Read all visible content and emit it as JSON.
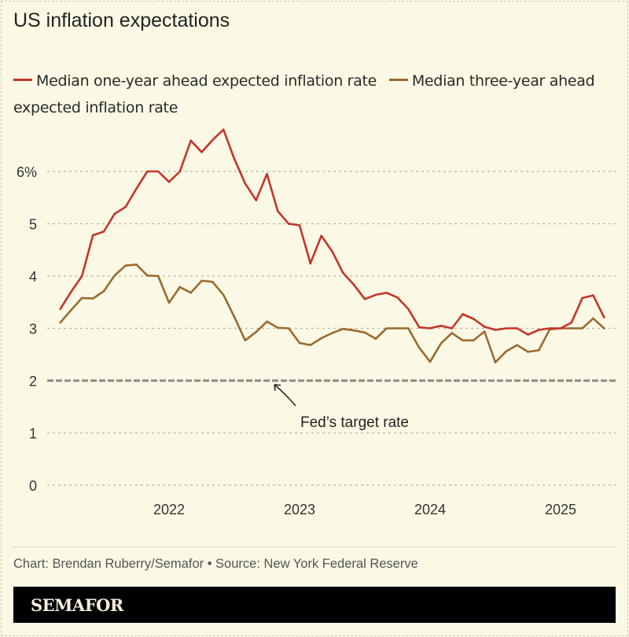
{
  "chart_data": {
    "type": "line",
    "title": "US inflation expectations",
    "xlabel": "",
    "ylabel": "",
    "ylim": [
      0,
      7
    ],
    "yticks": [
      0,
      1,
      2,
      3,
      4,
      5,
      6
    ],
    "ytick_labels": [
      "0",
      "1",
      "2",
      "3",
      "4",
      "5",
      "6%"
    ],
    "xtick_labels": [
      "2022",
      "2023",
      "2024",
      "2025"
    ],
    "grid": true,
    "legend_placement": "top",
    "x_start": "2021-03",
    "x_end": "2025-05",
    "frequency": "monthly",
    "series": [
      {
        "name": "Median one-year ahead expected inflation rate",
        "color": "#c4352a",
        "values": [
          3.37,
          3.7,
          4.0,
          4.78,
          4.85,
          5.19,
          5.32,
          5.67,
          6.0,
          6.0,
          5.8,
          6.0,
          6.59,
          6.37,
          6.6,
          6.8,
          6.24,
          5.77,
          5.45,
          5.95,
          5.24,
          5.0,
          4.97,
          4.24,
          4.77,
          4.47,
          4.06,
          3.83,
          3.56,
          3.64,
          3.68,
          3.59,
          3.37,
          3.02,
          3.0,
          3.05,
          3.0,
          3.27,
          3.18,
          3.03,
          2.97,
          3.0,
          3.0,
          2.88,
          2.97,
          3.0,
          3.0,
          3.11,
          3.58,
          3.63,
          3.21
        ]
      },
      {
        "name": "Median three-year ahead expected inflation rate",
        "color": "#9b6a2f",
        "values": [
          3.11,
          3.35,
          3.58,
          3.57,
          3.71,
          4.01,
          4.2,
          4.22,
          4.01,
          4.0,
          3.49,
          3.79,
          3.68,
          3.91,
          3.89,
          3.64,
          3.22,
          2.77,
          2.93,
          3.13,
          3.01,
          3.0,
          2.72,
          2.68,
          2.81,
          2.91,
          2.99,
          2.96,
          2.92,
          2.8,
          3.0,
          3.0,
          3.0,
          2.63,
          2.36,
          2.71,
          2.91,
          2.77,
          2.77,
          2.94,
          2.35,
          2.56,
          2.68,
          2.55,
          2.58,
          2.98,
          3.0,
          3.0,
          3.0,
          3.19,
          3.0
        ]
      }
    ],
    "reference_line": {
      "value": 2,
      "label": "Fed’s target rate",
      "color": "#8a8a86"
    }
  },
  "footer": {
    "source": "Chart: Brendan Ruberry/Semafor • Source: New York Federal Reserve",
    "brand": "SEMAFOR"
  },
  "colors": {
    "background": "#fbf9e5",
    "grid": "#b8b6a8",
    "brand_bar": "#000000"
  }
}
